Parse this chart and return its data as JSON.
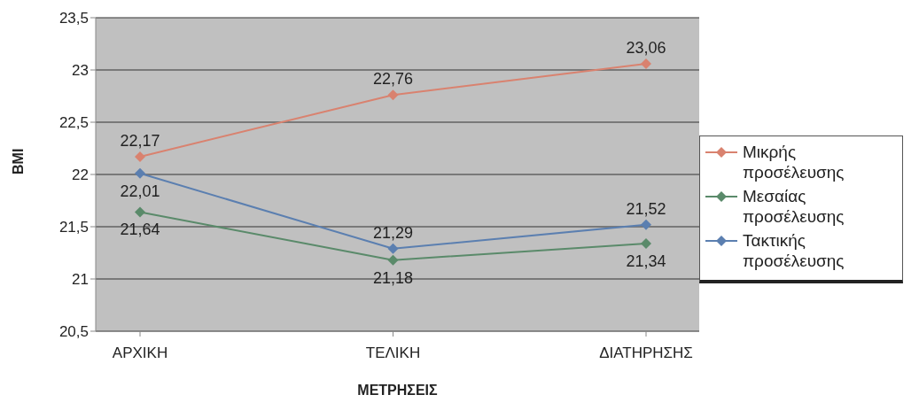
{
  "chart_data": {
    "type": "line",
    "xlabel": "ΜΕΤΡΗΣΕΙΣ",
    "ylabel": "BMI",
    "categories": [
      "ΑΡΧΙΚΗ",
      "ΤΕΛΙΚΗ",
      "ΔΙΑΤΗΡΗΣΗΣ"
    ],
    "series": [
      {
        "name": "Μικρής προσέλευσης",
        "color": "#d9826f",
        "values": [
          22.17,
          22.76,
          23.06
        ],
        "value_labels": [
          "22,17",
          "22,76",
          "23,06"
        ]
      },
      {
        "name": "Μεσαίας προσέλευσης",
        "color": "#5a8a6a",
        "values": [
          21.64,
          21.18,
          21.34
        ],
        "value_labels": [
          "21,64",
          "21,18",
          "21,34"
        ]
      },
      {
        "name": "Τακτικής προσέλευσης",
        "color": "#5b7fb0",
        "values": [
          22.01,
          21.29,
          21.52
        ],
        "value_labels": [
          "22,01",
          "21,29",
          "21,52"
        ]
      }
    ],
    "ylim": [
      20.5,
      23.5
    ],
    "yticks": [
      {
        "value": 20.5,
        "label": "20,5"
      },
      {
        "value": 21,
        "label": "21"
      },
      {
        "value": 21.5,
        "label": "21,5"
      },
      {
        "value": 22,
        "label": "22"
      },
      {
        "value": 22.5,
        "label": "22,5"
      },
      {
        "value": 23,
        "label": "23"
      },
      {
        "value": 23.5,
        "label": "23,5"
      }
    ],
    "grid": "y",
    "legend": "right",
    "marker": "diamond",
    "line_style": "solid"
  }
}
